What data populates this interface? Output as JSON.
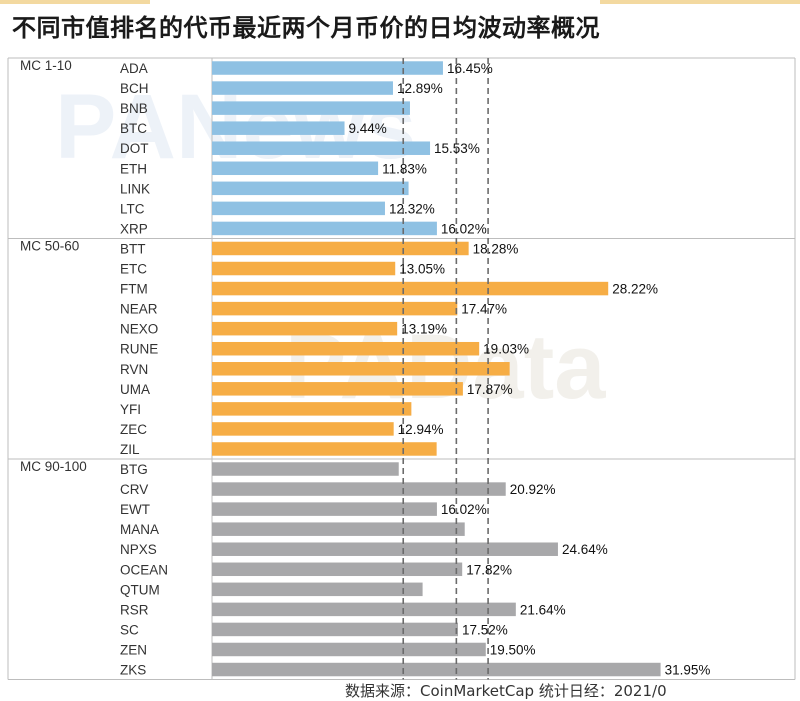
{
  "title": "不同市值排名的代币最近两个月币价的日均波动率概况",
  "footer": "数据来源：CoinMarketCap 统计日经：2021/0",
  "watermarks": [
    "PANews",
    "PAData"
  ],
  "colors": {
    "blue": "#8fc1e3",
    "orange": "#f6ad45",
    "gray": "#a8a8aa"
  },
  "chart_data": {
    "type": "bar",
    "orientation": "horizontal",
    "reference_lines_style": "dashed",
    "groups": [
      {
        "name": "MC 1-10",
        "color": "blue",
        "categories": [
          "ADA",
          "BCH",
          "BNB",
          "BTC",
          "DOT",
          "ETH",
          "LINK",
          "LTC",
          "XRP"
        ],
        "values": [
          16.45,
          12.89,
          14.1,
          9.44,
          15.53,
          11.83,
          14.0,
          12.32,
          16.02
        ],
        "labels": [
          "16.45%",
          "12.89%",
          "",
          "9.44%",
          "15.53%",
          "11.83%",
          "",
          "12.32%",
          "16.02%"
        ]
      },
      {
        "name": "MC 50-60",
        "color": "orange",
        "categories": [
          "BTT",
          "ETC",
          "FTM",
          "NEAR",
          "NEXO",
          "RUNE",
          "RVN",
          "UMA",
          "YFI",
          "ZEC",
          "ZIL"
        ],
        "values": [
          18.28,
          13.05,
          28.22,
          17.47,
          13.19,
          19.03,
          21.2,
          17.87,
          14.2,
          12.94,
          16.0
        ],
        "labels": [
          "18.28%",
          "13.05%",
          "28.22%",
          "17.47%",
          "13.19%",
          "19.03%",
          "",
          "17.87%",
          "",
          "12.94%",
          ""
        ]
      },
      {
        "name": "MC 90-100",
        "color": "gray",
        "categories": [
          "BTG",
          "CRV",
          "EWT",
          "MANA",
          "NPXS",
          "OCEAN",
          "QTUM",
          "RSR",
          "SC",
          "ZEN",
          "ZKS"
        ],
        "values": [
          13.3,
          20.92,
          16.02,
          18.0,
          24.64,
          17.82,
          15.0,
          21.64,
          17.52,
          19.5,
          31.95
        ],
        "labels": [
          "",
          "20.92%",
          "16.02%",
          "",
          "24.64%",
          "17.82%",
          "",
          "21.64%",
          "17.52%",
          "19.50%",
          "31.95%"
        ]
      }
    ]
  }
}
